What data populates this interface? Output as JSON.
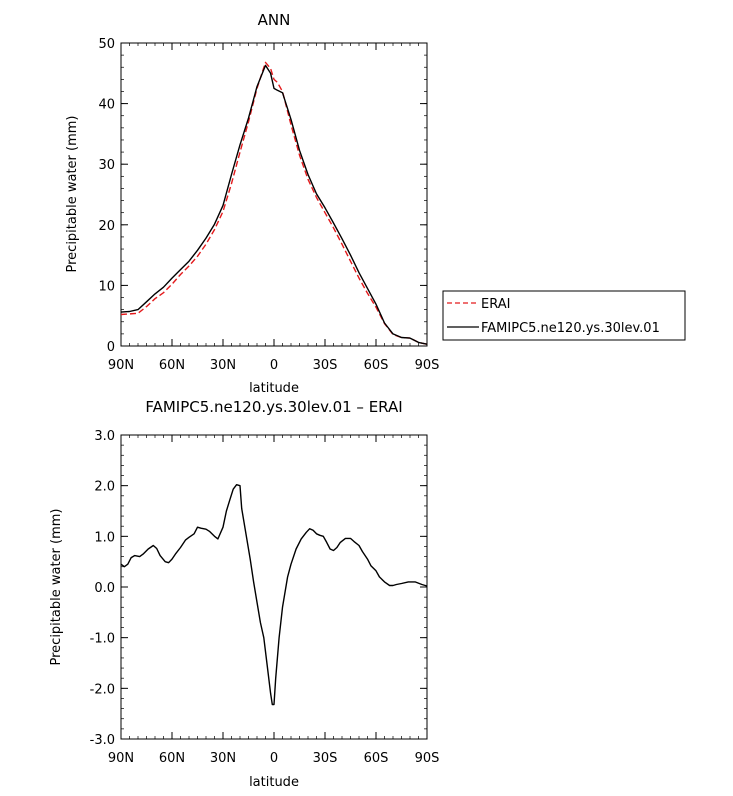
{
  "chart_data": [
    {
      "type": "line",
      "title": "ANN",
      "xlabel": "latitude",
      "ylabel": "Precipitable water (mm)",
      "xlim": [
        90,
        -90
      ],
      "ylim": [
        0,
        50
      ],
      "x_ticks": [
        90,
        60,
        30,
        0,
        -30,
        -60,
        -90
      ],
      "x_tick_labels": [
        "90N",
        "60N",
        "30N",
        "0",
        "30S",
        "60S",
        "90S"
      ],
      "y_ticks": [
        0,
        10,
        20,
        30,
        40,
        50
      ],
      "y_tick_labels": [
        "0",
        "10",
        "20",
        "30",
        "40",
        "50"
      ],
      "legend": "right",
      "series": [
        {
          "name": "ERAI",
          "color": "#e41a1c",
          "style": "dashed",
          "x": [
            90,
            85,
            80,
            75,
            70,
            65,
            60,
            55,
            50,
            45,
            40,
            35,
            30,
            25,
            20,
            15,
            10,
            5,
            2,
            0,
            -2,
            -5,
            -10,
            -15,
            -20,
            -25,
            -30,
            -35,
            -40,
            -45,
            -50,
            -55,
            -60,
            -65,
            -70,
            -75,
            -80,
            -85,
            -90
          ],
          "values": [
            5.2,
            5.3,
            5.4,
            6.5,
            7.8,
            8.8,
            10.2,
            11.8,
            13.2,
            14.8,
            16.8,
            19.2,
            22.2,
            26.8,
            32.0,
            37.0,
            42.5,
            46.8,
            45.8,
            44.0,
            43.5,
            42.0,
            36.5,
            31.5,
            27.5,
            24.5,
            22.0,
            19.5,
            16.8,
            14.0,
            11.2,
            8.7,
            6.4,
            3.7,
            1.9,
            1.4,
            1.3,
            0.6,
            0.3
          ]
        },
        {
          "name": "FAMIPC5.ne120.ys.30lev.01",
          "color": "#000000",
          "style": "solid",
          "x": [
            90,
            85,
            80,
            75,
            70,
            65,
            60,
            55,
            50,
            45,
            40,
            35,
            30,
            25,
            20,
            15,
            10,
            5,
            2,
            0,
            -2,
            -5,
            -10,
            -15,
            -20,
            -25,
            -30,
            -35,
            -40,
            -45,
            -50,
            -55,
            -60,
            -65,
            -70,
            -75,
            -80,
            -85,
            -90
          ],
          "values": [
            5.6,
            5.7,
            6.0,
            7.3,
            8.6,
            9.7,
            11.2,
            12.6,
            14.0,
            15.8,
            17.8,
            20.1,
            23.2,
            28.3,
            33.2,
            37.6,
            42.8,
            46.3,
            45.0,
            42.5,
            42.2,
            41.8,
            37.4,
            32.3,
            28.3,
            25.1,
            22.8,
            20.3,
            17.7,
            15.0,
            12.1,
            9.5,
            6.9,
            3.8,
            2.0,
            1.4,
            1.3,
            0.6,
            0.3
          ]
        }
      ]
    },
    {
      "type": "line",
      "title": "FAMIPC5.ne120.ys.30lev.01 – ERAI",
      "xlabel": "latitude",
      "ylabel": "Precipitable water (mm)",
      "xlim": [
        90,
        -90
      ],
      "ylim": [
        -3,
        3
      ],
      "x_ticks": [
        90,
        60,
        30,
        0,
        -30,
        -60,
        -90
      ],
      "x_tick_labels": [
        "90N",
        "60N",
        "30N",
        "0",
        "30S",
        "60S",
        "90S"
      ],
      "y_ticks": [
        -3,
        -2,
        -1,
        0,
        1,
        2,
        3
      ],
      "y_tick_labels": [
        "-3.0",
        "-2.0",
        "-1.0",
        "0.0",
        "1.0",
        "2.0",
        "3.0"
      ],
      "series": [
        {
          "color": "#000000",
          "style": "solid",
          "x": [
            90,
            88,
            86,
            84,
            82,
            79,
            77,
            74,
            71,
            69,
            67,
            64,
            62,
            60,
            58,
            55,
            52,
            50,
            47,
            45,
            43,
            40,
            38,
            35,
            33,
            30,
            28,
            26,
            24,
            22,
            20,
            19,
            17,
            14,
            12,
            10,
            8,
            6,
            4,
            2,
            1,
            0,
            -1,
            -3,
            -5,
            -8,
            -10,
            -13,
            -16,
            -19,
            -21,
            -23,
            -25,
            -27,
            -29,
            -31,
            -33,
            -35,
            -37,
            -39,
            -42,
            -45,
            -47,
            -50,
            -52,
            -55,
            -57,
            -60,
            -62,
            -65,
            -68,
            -70,
            -72,
            -75,
            -79,
            -83,
            -87,
            -90
          ],
          "values": [
            0.45,
            0.4,
            0.45,
            0.58,
            0.62,
            0.6,
            0.65,
            0.75,
            0.82,
            0.76,
            0.62,
            0.5,
            0.48,
            0.55,
            0.65,
            0.78,
            0.93,
            0.98,
            1.05,
            1.18,
            1.16,
            1.14,
            1.1,
            1.0,
            0.95,
            1.18,
            1.5,
            1.72,
            1.93,
            2.02,
            2.0,
            1.55,
            1.15,
            0.55,
            0.1,
            -0.3,
            -0.7,
            -1.0,
            -1.55,
            -2.1,
            -2.32,
            -2.32,
            -1.8,
            -1.0,
            -0.4,
            0.2,
            0.45,
            0.75,
            0.95,
            1.08,
            1.15,
            1.12,
            1.05,
            1.02,
            1.0,
            0.88,
            0.75,
            0.72,
            0.78,
            0.88,
            0.96,
            0.96,
            0.9,
            0.82,
            0.7,
            0.55,
            0.42,
            0.32,
            0.2,
            0.1,
            0.03,
            0.03,
            0.05,
            0.07,
            0.1,
            0.1,
            0.05,
            0.02
          ]
        }
      ]
    }
  ]
}
